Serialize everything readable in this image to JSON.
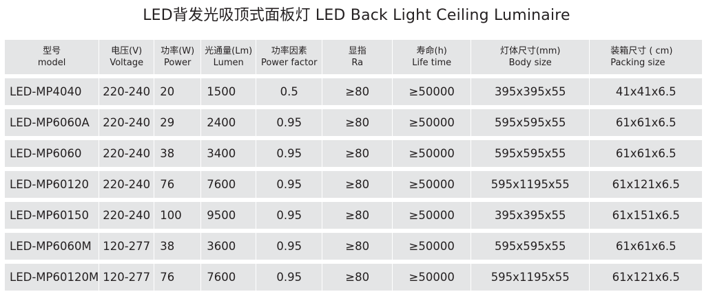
{
  "title": "LED背发光吸顶式面板灯  LED Back Light Ceiling Luminaire",
  "headers": [
    {
      "cn": "型号",
      "en": "model"
    },
    {
      "cn": "电压(V)",
      "en": "Voltage"
    },
    {
      "cn": "功率(W)",
      "en": "Power"
    },
    {
      "cn": "光通量(Lm)",
      "en": "Lumen"
    },
    {
      "cn": "功率因素",
      "en": "Power factor"
    },
    {
      "cn": "显指",
      "en": "Ra"
    },
    {
      "cn": "寿命(h)",
      "en": "Life time"
    },
    {
      "cn": "灯体尺寸(mm)",
      "en": "Body size"
    },
    {
      "cn": "装箱尺寸 ( cm)",
      "en": "Packing size"
    }
  ],
  "rows": [
    [
      "LED-MP4040",
      "220-240",
      "20",
      "1500",
      "0.5",
      "≥80",
      "≥50000",
      "395x395x55",
      "41x41x6.5"
    ],
    [
      "LED-MP6060A",
      "220-240",
      "29",
      "2400",
      "0.95",
      "≥80",
      "≥50000",
      "595x595x55",
      "61x61x6.5"
    ],
    [
      "LED-MP6060",
      "220-240",
      "38",
      "3400",
      "0.95",
      "≥80",
      "≥50000",
      "595x595x55",
      "61x61x6.5"
    ],
    [
      "LED-MP60120",
      "220-240",
      "76",
      "7600",
      "0.95",
      "≥80",
      "≥50000",
      "595x1195x55",
      "61x121x6.5"
    ],
    [
      "LED-MP60150",
      "220-240",
      "100",
      "9500",
      "0.95",
      "≥80",
      "≥50000",
      "395x395x55",
      "61x151x6.5"
    ],
    [
      "LED-MP6060M",
      "120-277",
      "38",
      "3600",
      "0.95",
      "≥80",
      "≥50000",
      "595x595x55",
      "61x61x6.5"
    ],
    [
      "LED-MP60120M",
      "120-277",
      "76",
      "7600",
      "0.95",
      "≥80",
      "≥50000",
      "595x1195x55",
      "61x121x6.5"
    ]
  ]
}
